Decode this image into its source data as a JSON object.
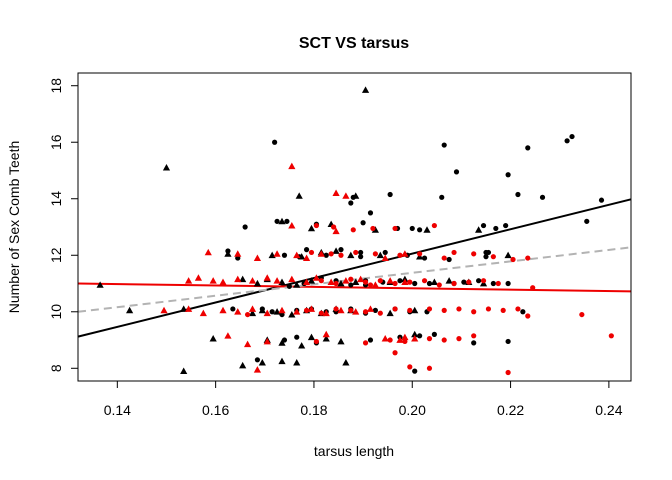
{
  "chart_data": {
    "type": "scatter",
    "title": "SCT VS tarsus",
    "xlabel": "tarsus length",
    "ylabel": "Number of Sex Comb Teeth",
    "xlim": [
      0.132,
      0.2445
    ],
    "ylim": [
      7.55,
      18.45
    ],
    "xticks": [
      0.14,
      0.16,
      0.18,
      0.2,
      0.22,
      0.24
    ],
    "xtick_labels": [
      "0.14",
      "0.16",
      "0.18",
      "0.20",
      "0.22",
      "0.24"
    ],
    "yticks": [
      8,
      10,
      12,
      14,
      16,
      18
    ],
    "ytick_labels": [
      "8",
      "10",
      "12",
      "14",
      "16",
      "18"
    ],
    "grid": false,
    "colors": {
      "black": "#000000",
      "red": "#ee0000",
      "gray_line": "#b3b3b3"
    },
    "series": [
      {
        "color": "#000000",
        "marker": "circle",
        "points": [
          [
            0.172,
            16.0
          ],
          [
            0.2065,
            15.9
          ],
          [
            0.209,
            14.95
          ],
          [
            0.2315,
            16.05
          ],
          [
            0.2325,
            16.2
          ],
          [
            0.2235,
            15.8
          ],
          [
            0.2195,
            14.85
          ],
          [
            0.2265,
            14.05
          ],
          [
            0.2215,
            14.15
          ],
          [
            0.2385,
            13.95
          ],
          [
            0.1955,
            14.15
          ],
          [
            0.206,
            14.05
          ],
          [
            0.188,
            14.05
          ],
          [
            0.1915,
            13.5
          ],
          [
            0.197,
            12.95
          ],
          [
            0.2,
            12.95
          ],
          [
            0.2015,
            12.9
          ],
          [
            0.1875,
            13.85
          ],
          [
            0.19,
            13.15
          ],
          [
            0.1725,
            13.2
          ],
          [
            0.1745,
            13.2
          ],
          [
            0.166,
            13.0
          ],
          [
            0.1805,
            13.1
          ],
          [
            0.2145,
            13.05
          ],
          [
            0.217,
            12.95
          ],
          [
            0.219,
            13.05
          ],
          [
            0.2355,
            13.2
          ],
          [
            0.1625,
            12.15
          ],
          [
            0.174,
            12.0
          ],
          [
            0.177,
            11.95
          ],
          [
            0.1785,
            12.2
          ],
          [
            0.1825,
            12.0
          ],
          [
            0.1855,
            12.2
          ],
          [
            0.1895,
            12.1
          ],
          [
            0.1945,
            12.1
          ],
          [
            0.199,
            12.0
          ],
          [
            0.2025,
            11.9
          ],
          [
            0.1895,
            11.95
          ],
          [
            0.2075,
            11.85
          ],
          [
            0.215,
            12.1
          ],
          [
            0.2155,
            12.1
          ],
          [
            0.1815,
            11.2
          ],
          [
            0.1845,
            11.1
          ],
          [
            0.1875,
            10.95
          ],
          [
            0.1905,
            11.1
          ],
          [
            0.194,
            11.05
          ],
          [
            0.1975,
            11.1
          ],
          [
            0.2005,
            11.0
          ],
          [
            0.2035,
            11.0
          ],
          [
            0.2105,
            11.05
          ],
          [
            0.2135,
            11.1
          ],
          [
            0.2165,
            11.0
          ],
          [
            0.2195,
            11.0
          ],
          [
            0.1905,
            10.95
          ],
          [
            0.2085,
            11.0
          ],
          [
            0.175,
            10.9
          ],
          [
            0.178,
            11.0
          ],
          [
            0.1695,
            10.1
          ],
          [
            0.1715,
            10.0
          ],
          [
            0.1735,
            9.9
          ],
          [
            0.1765,
            10.05
          ],
          [
            0.1795,
            10.1
          ],
          [
            0.1825,
            10.0
          ],
          [
            0.1845,
            10.0
          ],
          [
            0.1875,
            10.1
          ],
          [
            0.1905,
            9.95
          ],
          [
            0.1925,
            10.05
          ],
          [
            0.1965,
            10.1
          ],
          [
            0.1995,
            10.0
          ],
          [
            0.203,
            10.0
          ],
          [
            0.1975,
            9.1
          ],
          [
            0.2015,
            9.15
          ],
          [
            0.2045,
            9.2
          ],
          [
            0.1915,
            9.0
          ],
          [
            0.1805,
            8.9
          ],
          [
            0.1765,
            9.1
          ],
          [
            0.2195,
            8.95
          ],
          [
            0.2125,
            8.9
          ],
          [
            0.1685,
            8.3
          ],
          [
            0.2005,
            7.9
          ],
          [
            0.174,
            9.0
          ],
          [
            0.1635,
            10.1
          ],
          [
            0.1645,
            11.9
          ],
          [
            0.2225,
            10.0
          ],
          [
            0.215,
            11.95
          ]
        ]
      },
      {
        "color": "#000000",
        "marker": "triangle",
        "points": [
          [
            0.1905,
            17.85
          ],
          [
            0.15,
            15.1
          ],
          [
            0.177,
            14.1
          ],
          [
            0.1885,
            14.1
          ],
          [
            0.1735,
            13.2
          ],
          [
            0.1835,
            13.1
          ],
          [
            0.1795,
            12.95
          ],
          [
            0.1925,
            12.9
          ],
          [
            0.203,
            12.9
          ],
          [
            0.2135,
            12.9
          ],
          [
            0.1625,
            12.05
          ],
          [
            0.1715,
            12.0
          ],
          [
            0.1775,
            11.95
          ],
          [
            0.1815,
            12.1
          ],
          [
            0.1845,
            12.15
          ],
          [
            0.1875,
            12.0
          ],
          [
            0.1935,
            12.0
          ],
          [
            0.2015,
            11.95
          ],
          [
            0.1655,
            11.15
          ],
          [
            0.1685,
            11.0
          ],
          [
            0.1705,
            11.15
          ],
          [
            0.1735,
            11.05
          ],
          [
            0.1765,
            10.95
          ],
          [
            0.1795,
            11.1
          ],
          [
            0.1855,
            11.0
          ],
          [
            0.1885,
            11.05
          ],
          [
            0.1955,
            11.05
          ],
          [
            0.1985,
            11.15
          ],
          [
            0.2045,
            11.05
          ],
          [
            0.2075,
            11.1
          ],
          [
            0.2115,
            11.05
          ],
          [
            0.2145,
            11.0
          ],
          [
            0.1365,
            10.95
          ],
          [
            0.1425,
            10.05
          ],
          [
            0.1535,
            10.1
          ],
          [
            0.1675,
            9.95
          ],
          [
            0.1695,
            10.05
          ],
          [
            0.1725,
            10.0
          ],
          [
            0.1755,
            9.9
          ],
          [
            0.1785,
            10.05
          ],
          [
            0.1815,
            9.95
          ],
          [
            0.1845,
            10.1
          ],
          [
            0.1875,
            10.05
          ],
          [
            0.1955,
            9.95
          ],
          [
            0.2005,
            10.05
          ],
          [
            0.1595,
            9.05
          ],
          [
            0.1705,
            9.0
          ],
          [
            0.1735,
            8.9
          ],
          [
            0.1775,
            8.8
          ],
          [
            0.1795,
            9.1
          ],
          [
            0.1825,
            9.05
          ],
          [
            0.1855,
            8.95
          ],
          [
            0.2005,
            9.2
          ],
          [
            0.1655,
            8.1
          ],
          [
            0.1695,
            8.2
          ],
          [
            0.1735,
            8.25
          ],
          [
            0.1765,
            8.2
          ],
          [
            0.1865,
            8.2
          ],
          [
            0.1535,
            7.9
          ],
          [
            0.2195,
            12.0
          ]
        ]
      },
      {
        "color": "#ee0000",
        "marker": "circle",
        "points": [
          [
            0.1805,
            13.05
          ],
          [
            0.184,
            13.0
          ],
          [
            0.188,
            12.9
          ],
          [
            0.192,
            12.95
          ],
          [
            0.2045,
            13.05
          ],
          [
            0.1965,
            12.95
          ],
          [
            0.1795,
            12.1
          ],
          [
            0.1835,
            12.05
          ],
          [
            0.1855,
            12.0
          ],
          [
            0.1885,
            12.1
          ],
          [
            0.1925,
            12.05
          ],
          [
            0.1975,
            12.0
          ],
          [
            0.2015,
            12.05
          ],
          [
            0.2085,
            12.1
          ],
          [
            0.2125,
            12.05
          ],
          [
            0.2165,
            11.95
          ],
          [
            0.2205,
            11.85
          ],
          [
            0.2235,
            11.9
          ],
          [
            0.2065,
            11.9
          ],
          [
            0.1815,
            11.1
          ],
          [
            0.1845,
            11.0
          ],
          [
            0.1875,
            11.15
          ],
          [
            0.1905,
            11.05
          ],
          [
            0.1935,
            11.1
          ],
          [
            0.1965,
            11.0
          ],
          [
            0.1995,
            11.05
          ],
          [
            0.2025,
            11.1
          ],
          [
            0.2055,
            10.95
          ],
          [
            0.2085,
            11.0
          ],
          [
            0.2115,
            11.05
          ],
          [
            0.2145,
            11.1
          ],
          [
            0.2175,
            11.0
          ],
          [
            0.1785,
            10.05
          ],
          [
            0.1815,
            9.95
          ],
          [
            0.1845,
            10.1
          ],
          [
            0.1875,
            10.05
          ],
          [
            0.1905,
            10.0
          ],
          [
            0.1935,
            9.95
          ],
          [
            0.1965,
            10.1
          ],
          [
            0.1995,
            10.05
          ],
          [
            0.2035,
            10.1
          ],
          [
            0.2065,
            10.05
          ],
          [
            0.2095,
            10.1
          ],
          [
            0.2125,
            10.0
          ],
          [
            0.2155,
            10.1
          ],
          [
            0.2185,
            10.05
          ],
          [
            0.2215,
            10.1
          ],
          [
            0.2245,
            10.85
          ],
          [
            0.2035,
            9.05
          ],
          [
            0.2065,
            9.0
          ],
          [
            0.2095,
            9.05
          ],
          [
            0.2125,
            9.15
          ],
          [
            0.1985,
            8.95
          ],
          [
            0.1955,
            9.0
          ],
          [
            0.2235,
            9.85
          ],
          [
            0.2405,
            9.15
          ],
          [
            0.2345,
            9.9
          ],
          [
            0.1905,
            8.9
          ],
          [
            0.2195,
            7.85
          ],
          [
            0.1995,
            8.05
          ],
          [
            0.2035,
            8.0
          ],
          [
            0.1665,
            9.9
          ],
          [
            0.1965,
            8.55
          ],
          [
            0.1805,
            8.95
          ],
          [
            0.1915,
            10.95
          ]
        ]
      },
      {
        "color": "#ee0000",
        "marker": "triangle",
        "points": [
          [
            0.1755,
            15.15
          ],
          [
            0.1845,
            14.2
          ],
          [
            0.1865,
            14.1
          ],
          [
            0.1755,
            13.05
          ],
          [
            0.1845,
            12.85
          ],
          [
            0.1585,
            12.1
          ],
          [
            0.1645,
            12.05
          ],
          [
            0.1685,
            11.9
          ],
          [
            0.1725,
            12.05
          ],
          [
            0.1765,
            12.0
          ],
          [
            0.1785,
            11.9
          ],
          [
            0.1815,
            12.05
          ],
          [
            0.1945,
            11.9
          ],
          [
            0.1985,
            12.05
          ],
          [
            0.1545,
            11.1
          ],
          [
            0.1565,
            11.2
          ],
          [
            0.1595,
            11.1
          ],
          [
            0.1615,
            11.05
          ],
          [
            0.1645,
            11.15
          ],
          [
            0.1675,
            11.1
          ],
          [
            0.1705,
            11.2
          ],
          [
            0.1725,
            11.1
          ],
          [
            0.1755,
            11.15
          ],
          [
            0.1785,
            11.05
          ],
          [
            0.1805,
            11.2
          ],
          [
            0.1835,
            11.05
          ],
          [
            0.1865,
            11.1
          ],
          [
            0.1895,
            11.15
          ],
          [
            0.1925,
            10.95
          ],
          [
            0.1955,
            11.1
          ],
          [
            0.1985,
            11.05
          ],
          [
            0.1495,
            10.05
          ],
          [
            0.1545,
            10.1
          ],
          [
            0.1575,
            9.95
          ],
          [
            0.1615,
            10.05
          ],
          [
            0.1645,
            10.0
          ],
          [
            0.1675,
            10.1
          ],
          [
            0.1705,
            9.95
          ],
          [
            0.1735,
            10.05
          ],
          [
            0.1765,
            10.0
          ],
          [
            0.1795,
            10.1
          ],
          [
            0.1825,
            9.95
          ],
          [
            0.1855,
            10.05
          ],
          [
            0.1885,
            10.0
          ],
          [
            0.1915,
            10.1
          ],
          [
            0.1945,
            9.05
          ],
          [
            0.1975,
            9.0
          ],
          [
            0.2005,
            9.05
          ],
          [
            0.1625,
            9.15
          ],
          [
            0.1665,
            8.85
          ],
          [
            0.1705,
            8.95
          ],
          [
            0.1825,
            9.2
          ],
          [
            0.1685,
            7.95
          ],
          [
            0.1985,
            9.1
          ]
        ]
      }
    ],
    "fit_lines": [
      {
        "color": "#000000",
        "style": "solid",
        "x": [
          0.132,
          0.2445
        ],
        "y": [
          9.12,
          13.98
        ]
      },
      {
        "color": "#ee0000",
        "style": "solid",
        "x": [
          0.132,
          0.2445
        ],
        "y": [
          11.0,
          10.72
        ]
      },
      {
        "color": "#b3b3b3",
        "style": "dashed",
        "x": [
          0.132,
          0.2445
        ],
        "y": [
          10.0,
          12.28
        ]
      }
    ]
  }
}
